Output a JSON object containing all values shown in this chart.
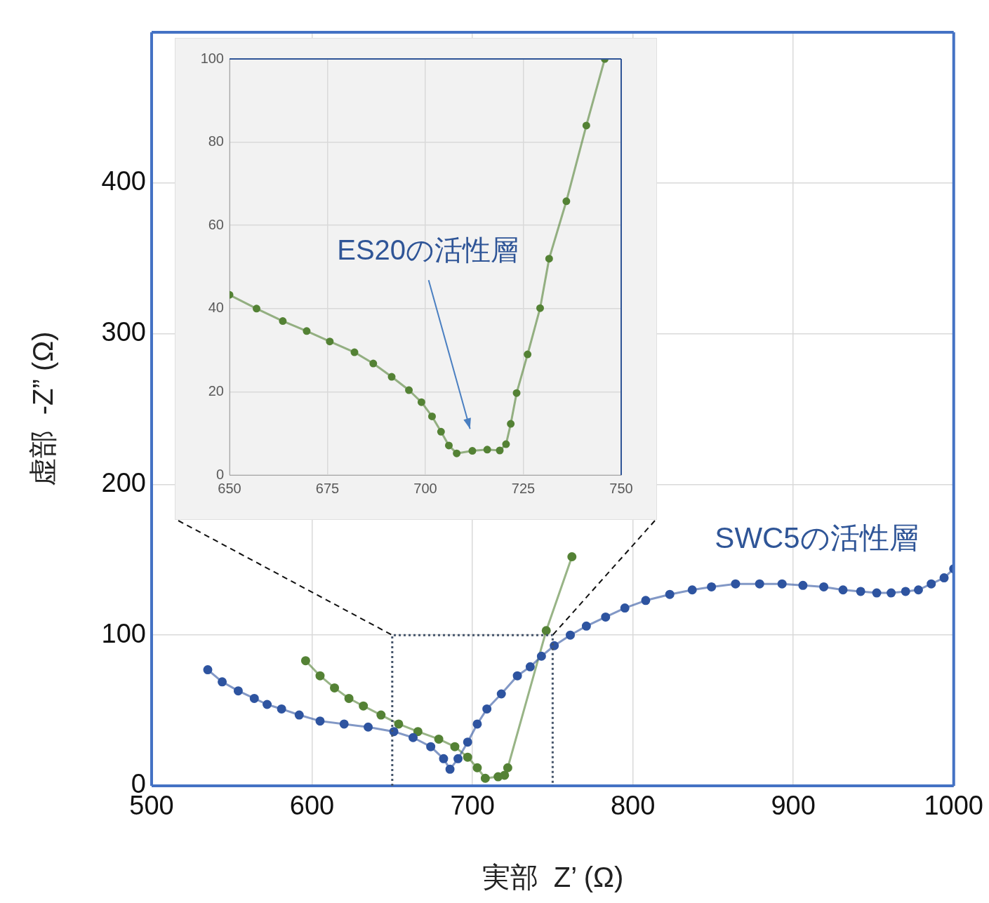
{
  "chart_data": [
    {
      "type": "line",
      "xlabel": "実部  Z’ (Ω)",
      "ylabel": "虚部  -Z” (Ω)",
      "xlim": [
        500,
        1000
      ],
      "ylim": [
        0,
        500
      ],
      "xticks": [
        500,
        600,
        700,
        800,
        900,
        1000
      ],
      "yticks": [
        0,
        100,
        200,
        300,
        400
      ],
      "grid": true,
      "marker": "circle",
      "series": [
        {
          "name": "SWC5の活性層",
          "color": "#2e54a0",
          "x": [
            535,
            544,
            554,
            564,
            572,
            581,
            592,
            605,
            620,
            635,
            651,
            663,
            674,
            682,
            686,
            691,
            697,
            703,
            709,
            718,
            728,
            736,
            743,
            751,
            761,
            771,
            783,
            795,
            808,
            823,
            837,
            849,
            864,
            879,
            893,
            906,
            919,
            931,
            942,
            952,
            961,
            970,
            978,
            986,
            994,
            1000
          ],
          "values": [
            77,
            69,
            63,
            58,
            54,
            51,
            47,
            43,
            41,
            39,
            36,
            32,
            26,
            18,
            11,
            18,
            29,
            41,
            51,
            61,
            73,
            79,
            86,
            93,
            100,
            106,
            112,
            118,
            123,
            127,
            130,
            132,
            134,
            134,
            134,
            133,
            132,
            130,
            129,
            128,
            128,
            129,
            130,
            134,
            138,
            144
          ]
        },
        {
          "color": "#548235",
          "x": [
            596,
            605,
            614,
            623,
            632,
            643,
            654,
            666,
            679,
            689,
            697,
            703,
            708,
            716,
            720,
            722,
            746,
            762
          ],
          "values": [
            83,
            73,
            65,
            58,
            53,
            47,
            41,
            36,
            31,
            26,
            19,
            12,
            5,
            6,
            7,
            12,
            103,
            152
          ]
        }
      ]
    },
    {
      "type": "line",
      "xlim": [
        650,
        750
      ],
      "ylim": [
        0,
        100
      ],
      "xticks": [
        650,
        675,
        700,
        725,
        750
      ],
      "yticks": [
        0,
        20,
        40,
        60,
        80,
        100
      ],
      "grid": true,
      "marker": "circle",
      "annotations": [
        "ES20の活性層"
      ],
      "series": [
        {
          "color": "#548235",
          "x": [
            650,
            656.9,
            663.6,
            669.7,
            675.6,
            681.9,
            686.7,
            691.4,
            695.8,
            699,
            701.7,
            704,
            706,
            708,
            712,
            715.8,
            719,
            720.6,
            721.8,
            723.3,
            726.1,
            729.3,
            731.6,
            736,
            741.1,
            745.8
          ],
          "values": [
            43.3,
            40,
            37,
            34.6,
            32.1,
            29.5,
            26.8,
            23.6,
            20.4,
            17.5,
            14.1,
            10.4,
            7.1,
            5.2,
            5.8,
            6.1,
            5.9,
            7.4,
            12.3,
            19.7,
            29,
            40.1,
            52,
            65.8,
            84,
            100
          ]
        }
      ]
    }
  ]
}
